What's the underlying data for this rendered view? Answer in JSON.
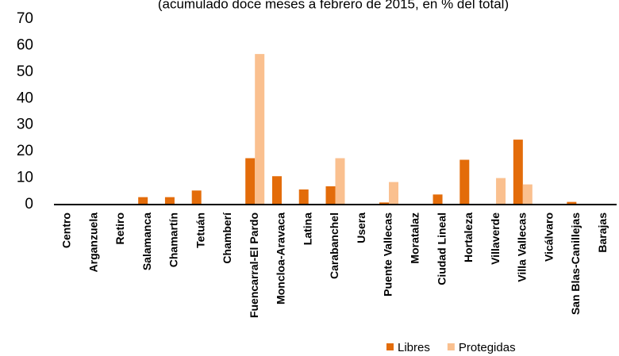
{
  "chart_data": {
    "type": "bar",
    "subtitle": "(acumulado doce meses a febrero de 2015, en % del total)",
    "categories": [
      "Centro",
      "Arganzuela",
      "Retiro",
      "Salamanca",
      "Chamartín",
      "Tetuán",
      "Chamberí",
      "Fuencarral-El Pardo",
      "Moncloa-Aravaca",
      "Latina",
      "Carabanchel",
      "Usera",
      "Puente Vallecas",
      "Moratalaz",
      "Ciudad Lineal",
      "Hortaleza",
      "Villaverde",
      "Villa Vallecas",
      "Vicálvaro",
      "San Blas-Canillejas",
      "Barajas"
    ],
    "series": [
      {
        "name": "Libres",
        "color": "#e36c0a",
        "values": [
          0,
          0,
          0,
          2.8,
          2.8,
          5.3,
          0,
          17.5,
          10.7,
          5.7,
          6.9,
          0,
          0.8,
          0,
          3.8,
          16.9,
          0,
          24.5,
          0,
          1.0,
          0
        ]
      },
      {
        "name": "Protegidas",
        "color": "#fac08f",
        "values": [
          0,
          0,
          0,
          0,
          0,
          0,
          0,
          56.8,
          0,
          0,
          17.5,
          0,
          8.5,
          0,
          0,
          0,
          10,
          7.6,
          0,
          0,
          0
        ]
      }
    ],
    "ylim": [
      0,
      70
    ],
    "yticks": [
      0,
      10,
      20,
      30,
      40,
      50,
      60,
      70
    ],
    "legend": "bottom-right",
    "grid": false
  }
}
